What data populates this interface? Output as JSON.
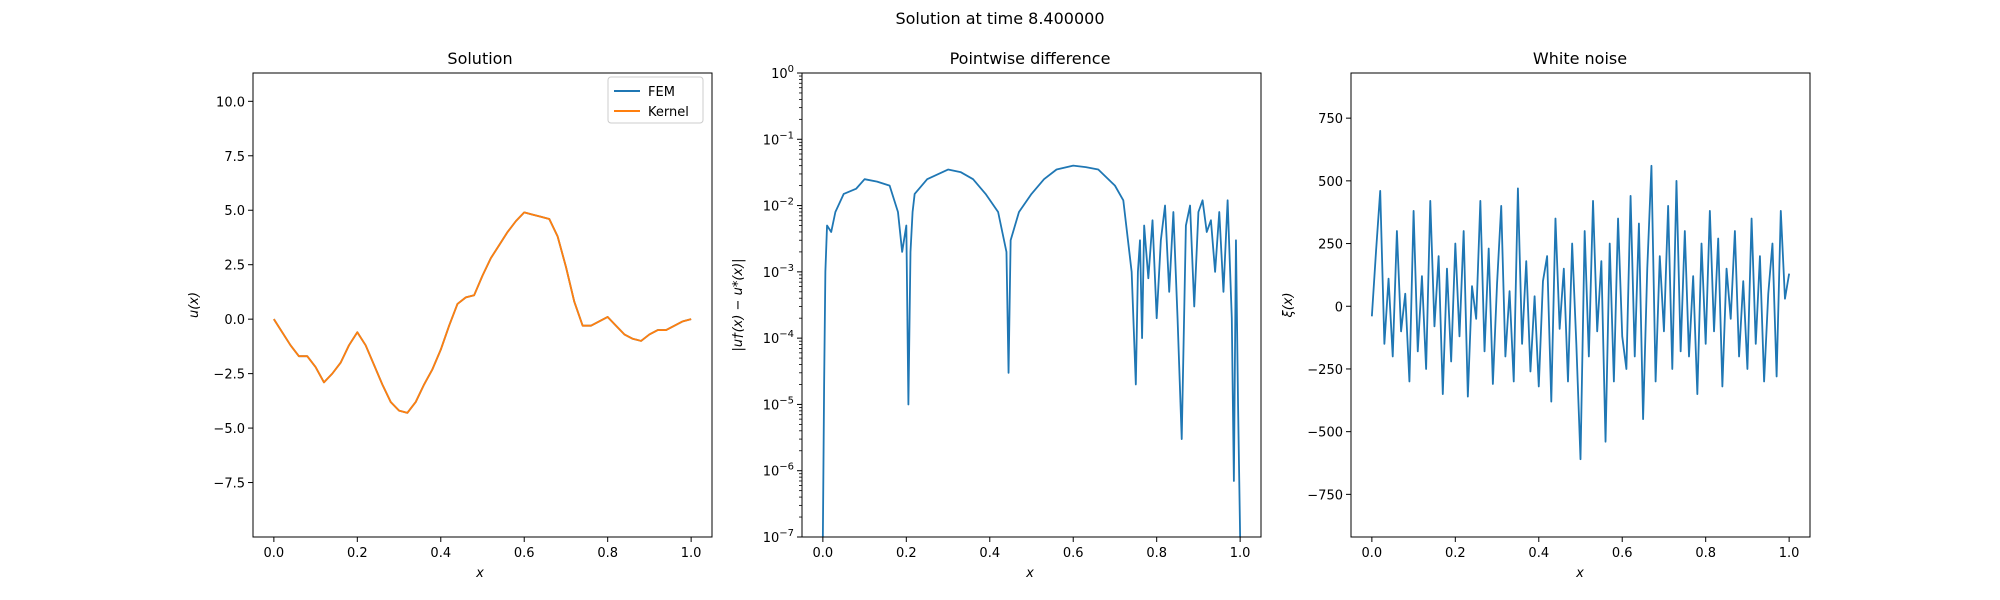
{
  "figure": {
    "suptitle": "Solution at time 8.400000"
  },
  "colors": {
    "fem": "#1f77b4",
    "kernel": "#ff7f0e",
    "axis": "#000000",
    "legend_border": "#cccccc"
  },
  "chart_data": [
    {
      "type": "line",
      "title": "Solution",
      "xlabel": "x",
      "ylabel": "u(x)",
      "xlim": [
        -0.05,
        1.05
      ],
      "ylim": [
        -10,
        11.3
      ],
      "xticks": [
        0.0,
        0.2,
        0.4,
        0.6,
        0.8,
        1.0
      ],
      "xtick_labels": [
        "0.0",
        "0.2",
        "0.4",
        "0.6",
        "0.8",
        "1.0"
      ],
      "yticks": [
        -7.5,
        -5.0,
        -2.5,
        0.0,
        2.5,
        5.0,
        7.5,
        10.0
      ],
      "ytick_labels": [
        "−7.5",
        "−5.0",
        "−2.5",
        "0.0",
        "2.5",
        "5.0",
        "7.5",
        "10.0"
      ],
      "legend": {
        "location": "upper right",
        "entries": [
          "FEM",
          "Kernel"
        ]
      },
      "series": [
        {
          "name": "FEM",
          "x": [
            0.0,
            0.02,
            0.04,
            0.06,
            0.08,
            0.1,
            0.12,
            0.14,
            0.16,
            0.18,
            0.2,
            0.22,
            0.24,
            0.26,
            0.28,
            0.3,
            0.32,
            0.34,
            0.36,
            0.38,
            0.4,
            0.42,
            0.44,
            0.46,
            0.48,
            0.5,
            0.52,
            0.54,
            0.56,
            0.58,
            0.6,
            0.62,
            0.64,
            0.66,
            0.68,
            0.7,
            0.72,
            0.74,
            0.76,
            0.78,
            0.8,
            0.82,
            0.84,
            0.86,
            0.88,
            0.9,
            0.92,
            0.94,
            0.96,
            0.98,
            1.0
          ],
          "y": [
            0.0,
            -0.6,
            -1.2,
            -1.7,
            -1.7,
            -2.2,
            -2.9,
            -2.5,
            -2.0,
            -1.2,
            -0.6,
            -1.2,
            -2.1,
            -3.0,
            -3.8,
            -4.2,
            -4.3,
            -3.8,
            -3.0,
            -2.3,
            -1.4,
            -0.3,
            0.7,
            1.0,
            1.1,
            2.0,
            2.8,
            3.4,
            4.0,
            4.5,
            4.9,
            4.8,
            4.7,
            4.6,
            3.8,
            2.4,
            0.8,
            -0.3,
            -0.3,
            -0.1,
            0.1,
            -0.3,
            -0.7,
            -0.9,
            -1.0,
            -0.7,
            -0.5,
            -0.5,
            -0.3,
            -0.1,
            0.0
          ]
        },
        {
          "name": "Kernel",
          "x": [
            0.0,
            0.02,
            0.04,
            0.06,
            0.08,
            0.1,
            0.12,
            0.14,
            0.16,
            0.18,
            0.2,
            0.22,
            0.24,
            0.26,
            0.28,
            0.3,
            0.32,
            0.34,
            0.36,
            0.38,
            0.4,
            0.42,
            0.44,
            0.46,
            0.48,
            0.5,
            0.52,
            0.54,
            0.56,
            0.58,
            0.6,
            0.62,
            0.64,
            0.66,
            0.68,
            0.7,
            0.72,
            0.74,
            0.76,
            0.78,
            0.8,
            0.82,
            0.84,
            0.86,
            0.88,
            0.9,
            0.92,
            0.94,
            0.96,
            0.98,
            1.0
          ],
          "y": [
            0.0,
            -0.6,
            -1.2,
            -1.7,
            -1.7,
            -2.2,
            -2.9,
            -2.5,
            -2.0,
            -1.2,
            -0.6,
            -1.2,
            -2.1,
            -3.0,
            -3.8,
            -4.2,
            -4.3,
            -3.8,
            -3.0,
            -2.3,
            -1.4,
            -0.3,
            0.7,
            1.0,
            1.1,
            2.0,
            2.8,
            3.4,
            4.0,
            4.5,
            4.9,
            4.8,
            4.7,
            4.6,
            3.8,
            2.4,
            0.8,
            -0.3,
            -0.3,
            -0.1,
            0.1,
            -0.3,
            -0.7,
            -0.9,
            -1.0,
            -0.7,
            -0.5,
            -0.5,
            -0.3,
            -0.1,
            0.0
          ]
        }
      ]
    },
    {
      "type": "line",
      "title": "Pointwise difference",
      "xlabel": "x",
      "ylabel": "|u†(x) − u*(x)|",
      "yscale": "log",
      "xlim": [
        -0.05,
        1.05
      ],
      "ylim": [
        1e-07,
        1
      ],
      "xticks": [
        0.0,
        0.2,
        0.4,
        0.6,
        0.8,
        1.0
      ],
      "xtick_labels": [
        "0.0",
        "0.2",
        "0.4",
        "0.6",
        "0.8",
        "1.0"
      ],
      "yticks": [
        1e-07,
        1e-06,
        1e-05,
        0.0001,
        0.001,
        0.01,
        0.1,
        1.0
      ],
      "ytick_bases": [
        "10",
        "10",
        "10",
        "10",
        "10",
        "10",
        "10",
        "10"
      ],
      "ytick_exponents": [
        "−7",
        "−6",
        "−5",
        "−4",
        "−3",
        "−2",
        "−1",
        "0"
      ],
      "series": [
        {
          "name": "difference",
          "x": [
            0.0,
            0.003,
            0.006,
            0.01,
            0.02,
            0.03,
            0.05,
            0.08,
            0.1,
            0.13,
            0.16,
            0.18,
            0.19,
            0.2,
            0.205,
            0.21,
            0.215,
            0.22,
            0.25,
            0.3,
            0.33,
            0.36,
            0.39,
            0.42,
            0.44,
            0.445,
            0.45,
            0.47,
            0.5,
            0.53,
            0.56,
            0.6,
            0.63,
            0.66,
            0.7,
            0.72,
            0.74,
            0.75,
            0.755,
            0.76,
            0.765,
            0.77,
            0.78,
            0.79,
            0.8,
            0.81,
            0.82,
            0.83,
            0.84,
            0.85,
            0.86,
            0.87,
            0.88,
            0.89,
            0.9,
            0.91,
            0.92,
            0.93,
            0.94,
            0.95,
            0.96,
            0.97,
            0.98,
            0.985,
            0.99,
            0.995,
            1.0
          ],
          "y": [
            1e-07,
            2e-05,
            0.001,
            0.005,
            0.004,
            0.008,
            0.015,
            0.018,
            0.025,
            0.023,
            0.02,
            0.008,
            0.002,
            0.005,
            1e-05,
            0.002,
            0.008,
            0.015,
            0.025,
            0.035,
            0.032,
            0.025,
            0.015,
            0.008,
            0.002,
            3e-05,
            0.003,
            0.008,
            0.015,
            0.025,
            0.035,
            0.04,
            0.038,
            0.035,
            0.02,
            0.012,
            0.001,
            2e-05,
            0.001,
            0.003,
            0.0001,
            0.005,
            0.0008,
            0.006,
            0.0002,
            0.003,
            0.01,
            0.0005,
            0.008,
            0.0002,
            3e-06,
            0.005,
            0.01,
            0.0003,
            0.008,
            0.012,
            0.004,
            0.006,
            0.001,
            0.008,
            0.0005,
            0.012,
            0.0002,
            7e-07,
            0.003,
            1e-05,
            1e-07
          ]
        }
      ]
    },
    {
      "type": "line",
      "title": "White noise",
      "xlabel": "x",
      "ylabel": "ξ(x)",
      "xlim": [
        -0.05,
        1.05
      ],
      "ylim": [
        -920,
        930
      ],
      "xticks": [
        0.0,
        0.2,
        0.4,
        0.6,
        0.8,
        1.0
      ],
      "xtick_labels": [
        "0.0",
        "0.2",
        "0.4",
        "0.6",
        "0.8",
        "1.0"
      ],
      "yticks": [
        -750,
        -500,
        -250,
        0,
        250,
        500,
        750
      ],
      "ytick_labels": [
        "−750",
        "−500",
        "−250",
        "0",
        "250",
        "500",
        "750"
      ],
      "series": [
        {
          "name": "noise",
          "x": [
            0.0,
            0.01,
            0.02,
            0.03,
            0.04,
            0.05,
            0.06,
            0.07,
            0.08,
            0.09,
            0.1,
            0.11,
            0.12,
            0.13,
            0.14,
            0.15,
            0.16,
            0.17,
            0.18,
            0.19,
            0.2,
            0.21,
            0.22,
            0.23,
            0.24,
            0.25,
            0.26,
            0.27,
            0.28,
            0.29,
            0.3,
            0.31,
            0.32,
            0.33,
            0.34,
            0.35,
            0.36,
            0.37,
            0.38,
            0.39,
            0.4,
            0.41,
            0.42,
            0.43,
            0.44,
            0.45,
            0.46,
            0.47,
            0.48,
            0.49,
            0.5,
            0.51,
            0.52,
            0.53,
            0.54,
            0.55,
            0.56,
            0.57,
            0.58,
            0.59,
            0.6,
            0.61,
            0.62,
            0.63,
            0.64,
            0.65,
            0.66,
            0.67,
            0.68,
            0.69,
            0.7,
            0.71,
            0.72,
            0.73,
            0.74,
            0.75,
            0.76,
            0.77,
            0.78,
            0.79,
            0.8,
            0.81,
            0.82,
            0.83,
            0.84,
            0.85,
            0.86,
            0.87,
            0.88,
            0.89,
            0.9,
            0.91,
            0.92,
            0.93,
            0.94,
            0.95,
            0.96,
            0.97,
            0.98,
            0.99,
            1.0
          ],
          "y": [
            -40,
            220,
            460,
            -150,
            110,
            -200,
            300,
            -100,
            50,
            -300,
            380,
            -180,
            120,
            -250,
            420,
            -80,
            200,
            -350,
            150,
            -220,
            250,
            -120,
            300,
            -360,
            80,
            -50,
            420,
            -180,
            230,
            -310,
            90,
            400,
            -200,
            60,
            -300,
            470,
            -150,
            180,
            -260,
            40,
            -320,
            100,
            200,
            -380,
            350,
            -90,
            150,
            -300,
            250,
            -150,
            -610,
            300,
            -200,
            420,
            -100,
            180,
            -540,
            250,
            -300,
            350,
            -120,
            -250,
            440,
            -200,
            330,
            -450,
            150,
            560,
            -300,
            200,
            -100,
            400,
            -250,
            500,
            -180,
            300,
            -200,
            120,
            -350,
            250,
            -150,
            380,
            -100,
            270,
            -320,
            150,
            -50,
            300,
            -200,
            100,
            -250,
            350,
            -150,
            200,
            -300,
            50,
            250,
            -280,
            380,
            30,
            130
          ]
        }
      ]
    }
  ]
}
